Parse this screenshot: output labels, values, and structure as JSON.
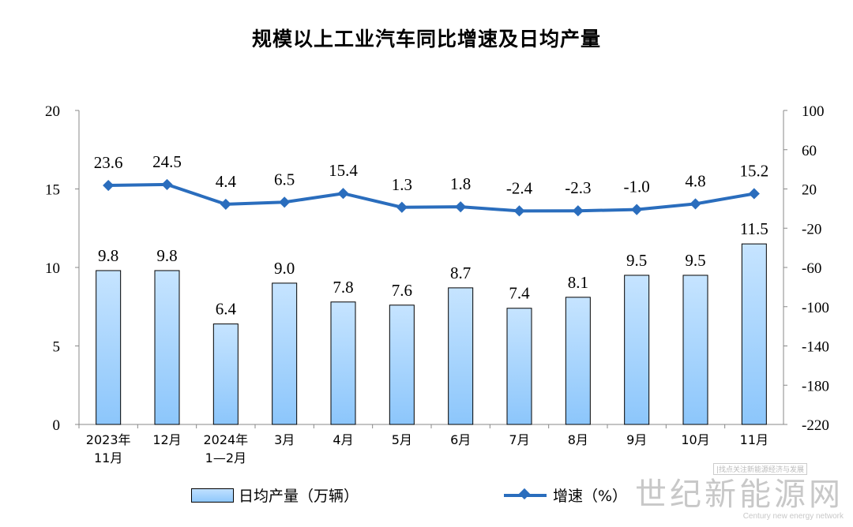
{
  "chart_data": {
    "type": "bar",
    "title": "规模以上工业汽车同比增速及日均产量",
    "categories": [
      [
        "2023年",
        "11月"
      ],
      [
        "12月"
      ],
      [
        "2024年",
        "1—2月"
      ],
      [
        "3月"
      ],
      [
        "4月"
      ],
      [
        "5月"
      ],
      [
        "6月"
      ],
      [
        "7月"
      ],
      [
        "8月"
      ],
      [
        "9月"
      ],
      [
        "10月"
      ],
      [
        "11月"
      ]
    ],
    "left_axis": {
      "range": [
        0,
        20
      ],
      "ticks": [
        0,
        5,
        10,
        15,
        20
      ]
    },
    "right_axis": {
      "range": [
        -220,
        100
      ],
      "ticks": [
        -220,
        -180,
        -140,
        -100,
        -60,
        -20,
        20,
        60,
        100
      ]
    },
    "series": [
      {
        "name": "日均产量（万辆）",
        "type": "bar",
        "axis": "left",
        "values": [
          9.8,
          9.8,
          6.4,
          9.0,
          7.8,
          7.6,
          8.7,
          7.4,
          8.1,
          9.5,
          9.5,
          11.5
        ],
        "labels": [
          "9.8",
          "9.8",
          "6.4",
          "9.0",
          "7.8",
          "7.6",
          "8.7",
          "7.4",
          "8.1",
          "9.5",
          "9.5",
          "11.5"
        ]
      },
      {
        "name": "增速（%）",
        "type": "line",
        "axis": "right",
        "values": [
          23.6,
          24.5,
          4.4,
          6.5,
          15.4,
          1.3,
          1.8,
          -2.4,
          -2.3,
          -1.0,
          4.8,
          15.2
        ],
        "labels": [
          "23.6",
          "24.5",
          "4.4",
          "6.5",
          "15.4",
          "1.3",
          "1.8",
          "-2.4",
          "-2.3",
          "-1.0",
          "4.8",
          "15.2"
        ]
      }
    ],
    "grid": false,
    "legend_position": "bottom",
    "colors": {
      "bar": "#9ccfff",
      "line": "#2a6dbd"
    }
  },
  "legend": {
    "bar_label": "日均产量（万辆）",
    "line_label": "增速（%）"
  },
  "watermark": {
    "box_text": "|找点关注新能源经济与发展",
    "cn": "世纪新能源网",
    "en": "Century new energy network"
  }
}
